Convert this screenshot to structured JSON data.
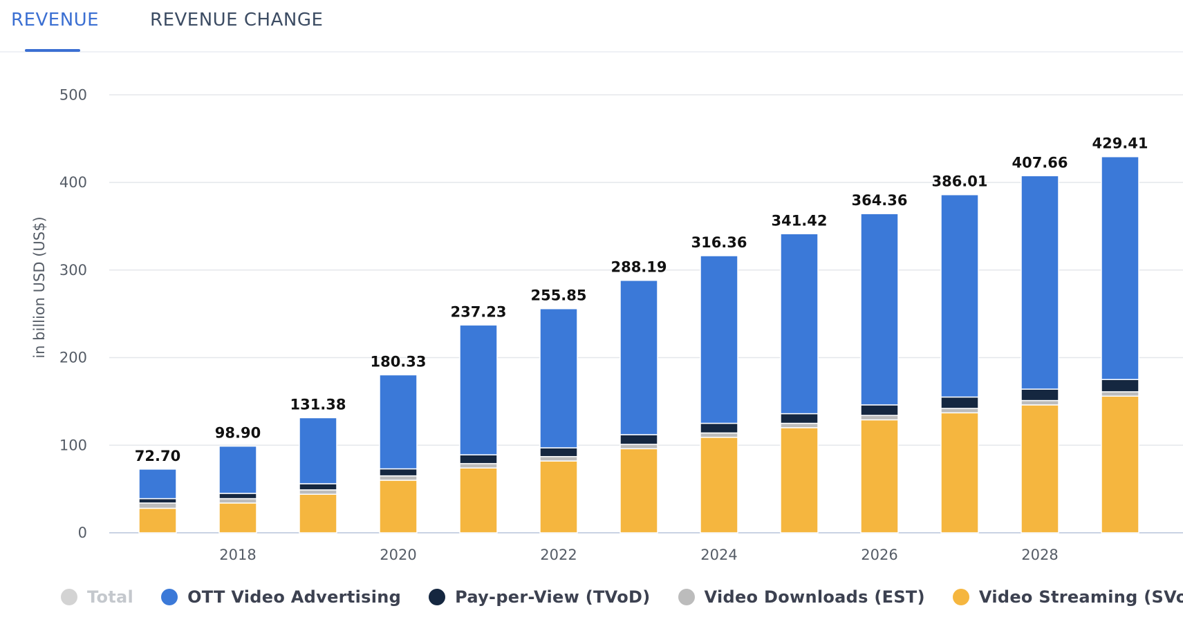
{
  "tabs": [
    {
      "label": "REVENUE",
      "active": true
    },
    {
      "label": "REVENUE CHANGE",
      "active": false
    }
  ],
  "colors": {
    "accent": "#3b6fd2",
    "total": "#d3d3d3",
    "ott_advertising": "#3b79d8",
    "tvod": "#152740",
    "est": "#bcbcbc",
    "svod": "#f5b63f"
  },
  "legend": [
    {
      "label": "Total",
      "color": "#d3d3d3",
      "disabled": true
    },
    {
      "label": "OTT Video Advertising",
      "color": "#3b79d8",
      "disabled": false
    },
    {
      "label": "Pay-per-View (TVoD)",
      "color": "#152740",
      "disabled": false
    },
    {
      "label": "Video Downloads (EST)",
      "color": "#bcbcbc",
      "disabled": false
    },
    {
      "label": "Video Streaming (SVoD)",
      "color": "#f5b63f",
      "disabled": false
    }
  ],
  "chart_data": {
    "type": "bar",
    "stacked": true,
    "x": [
      2017,
      2018,
      2019,
      2020,
      2021,
      2022,
      2023,
      2024,
      2025,
      2026,
      2027,
      2028,
      2029
    ],
    "xticks": [
      "2018",
      "2020",
      "2022",
      "2024",
      "2026",
      "2028"
    ],
    "ylabel": "in billion USD (US$)",
    "ylim": [
      0,
      500
    ],
    "yticks": [
      "0",
      "100",
      "200",
      "300",
      "400",
      "500"
    ],
    "grid": true,
    "legend_position": "bottom",
    "totals": [
      "72.70",
      "98.90",
      "131.38",
      "180.33",
      "237.23",
      "255.85",
      "288.19",
      "316.36",
      "341.42",
      "364.36",
      "386.01",
      "407.66",
      "429.41"
    ],
    "series": [
      {
        "name": "Video Streaming (SVoD)",
        "color": "#f5b63f",
        "values": [
          28,
          34,
          44,
          60,
          74,
          82,
          96,
          109,
          120,
          129,
          137,
          146,
          156
        ]
      },
      {
        "name": "Video Downloads (EST)",
        "color": "#bcbcbc",
        "values": [
          6,
          5,
          5,
          5,
          5,
          5,
          5,
          5,
          5,
          5,
          5,
          5,
          5
        ]
      },
      {
        "name": "Pay-per-View (TVoD)",
        "color": "#152740",
        "values": [
          5,
          6,
          7,
          8,
          10,
          10,
          11,
          11,
          11,
          12,
          13,
          13,
          14
        ]
      },
      {
        "name": "OTT Video Advertising",
        "color": "#3b79d8",
        "values": [
          33.7,
          53.9,
          75.38,
          107.33,
          148.23,
          158.85,
          176.19,
          191.36,
          205.42,
          218.36,
          231.01,
          243.66,
          254.41
        ]
      }
    ]
  }
}
